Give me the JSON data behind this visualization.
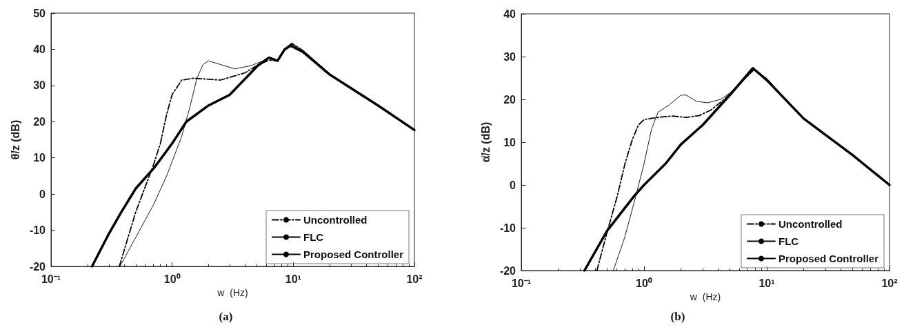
{
  "chart_data": [
    {
      "type": "line",
      "xlabel": "w  (Hz)",
      "ylabel": "θ̈/z (dB)",
      "annotations": [
        "(a)"
      ],
      "log": "x",
      "grid": false,
      "legend": "bottom right",
      "marker": "none",
      "xlim": [
        0.1,
        100
      ],
      "xticks": [
        {
          "value": 0.1,
          "label": "10⁻¹"
        },
        {
          "value": 1,
          "label": "10⁰"
        },
        {
          "value": 10,
          "label": "10¹"
        },
        {
          "value": 100,
          "label": "10²"
        }
      ],
      "ylim": [
        -20,
        50
      ],
      "yticks": [
        -20,
        -10,
        0,
        10,
        20,
        30,
        40,
        50
      ],
      "series": [
        {
          "name": "Uncontrolled",
          "color": "#000000",
          "line_style": "dashdot",
          "x": [
            0.366,
            0.5,
            0.7,
            0.8,
            0.9,
            1.0,
            1.2,
            1.5,
            2.5,
            4,
            5,
            6.3,
            7.4,
            8.5,
            9.7,
            12,
            20,
            50,
            100
          ],
          "values": [
            -20,
            -5,
            8,
            14,
            22,
            27.5,
            31.5,
            32,
            31.5,
            33.5,
            35.5,
            37,
            36.8,
            40,
            41.5,
            39.5,
            33,
            24.5,
            17.7
          ]
        },
        {
          "name": "FLC",
          "color": "#000000",
          "line_style": "solid",
          "x": [
            0.37,
            0.5,
            0.7,
            0.9,
            1.0,
            1.2,
            1.4,
            1.6,
            1.8,
            2.0,
            2.5,
            3.3,
            4.5,
            6.3,
            7.4,
            8.5,
            9.7,
            12,
            20,
            50,
            100
          ],
          "values": [
            -20,
            -12,
            -3,
            5,
            9,
            16,
            24,
            32,
            35.8,
            36.8,
            35.8,
            34.6,
            35.5,
            37.5,
            36.6,
            40.2,
            41.8,
            39.8,
            33.3,
            24.5,
            17.7
          ]
        },
        {
          "name": "Proposed Controller",
          "color": "#000000",
          "line_style": "solid",
          "x": [
            0.218,
            0.3,
            0.377,
            0.5,
            0.72,
            1.0,
            1.31,
            2.0,
            2.98,
            5.1,
            6.3,
            7.4,
            8.5,
            9.5,
            12,
            20,
            50,
            100
          ],
          "values": [
            -20,
            -11,
            -5.2,
            1.5,
            7.5,
            14,
            20,
            24.5,
            27.4,
            35.5,
            37.7,
            36.8,
            40,
            41,
            39.3,
            33,
            24.5,
            17.7
          ]
        }
      ]
    },
    {
      "type": "line",
      "xlabel": "w  (Hz)",
      "ylabel": "α̈/z (dB)",
      "annotations": [
        "(b)"
      ],
      "log": "x",
      "grid": false,
      "legend": "bottom right",
      "marker": "none",
      "xlim": [
        0.1,
        100
      ],
      "xticks": [
        {
          "value": 0.1,
          "label": "10⁻¹"
        },
        {
          "value": 1,
          "label": "10⁰"
        },
        {
          "value": 10,
          "label": "10¹"
        },
        {
          "value": 100,
          "label": "10²"
        }
      ],
      "ylim": [
        -20,
        40
      ],
      "yticks": [
        -20,
        -10,
        0,
        10,
        20,
        30,
        40
      ],
      "series": [
        {
          "name": "Uncontrolled",
          "color": "#000000",
          "line_style": "dashdot",
          "x": [
            0.413,
            0.5,
            0.6,
            0.7,
            0.8,
            0.9,
            1.0,
            1.3,
            1.7,
            2.2,
            2.8,
            3.5,
            4.5,
            5.5,
            7.9,
            10,
            20,
            50,
            100
          ],
          "values": [
            -20,
            -11,
            -3,
            5,
            10.5,
            14,
            15.3,
            15.8,
            16.1,
            15.8,
            16.2,
            17.5,
            20,
            22.5,
            27,
            24.8,
            15.5,
            7,
            0
          ]
        },
        {
          "name": "FLC",
          "color": "#000000",
          "line_style": "solid",
          "x": [
            0.562,
            0.7,
            0.85,
            1.0,
            1.15,
            1.3,
            1.6,
            2.0,
            2.2,
            2.7,
            3.3,
            4.2,
            5,
            7.8,
            10,
            20,
            50,
            100
          ],
          "values": [
            -20,
            -12,
            -3,
            5,
            13,
            17,
            18.7,
            21,
            21,
            19.5,
            19.2,
            20,
            21.5,
            27.2,
            24.8,
            15.5,
            7,
            0
          ]
        },
        {
          "name": "Proposed Controller",
          "color": "#000000",
          "line_style": "solid",
          "x": [
            0.327,
            0.5,
            0.83,
            1.0,
            1.5,
            2,
            3,
            5,
            7.7,
            10,
            20,
            50,
            100
          ],
          "values": [
            -20,
            -10.7,
            -2.6,
            0,
            5,
            9.5,
            14,
            21,
            27.3,
            24.5,
            15.5,
            7,
            0
          ]
        }
      ]
    }
  ]
}
